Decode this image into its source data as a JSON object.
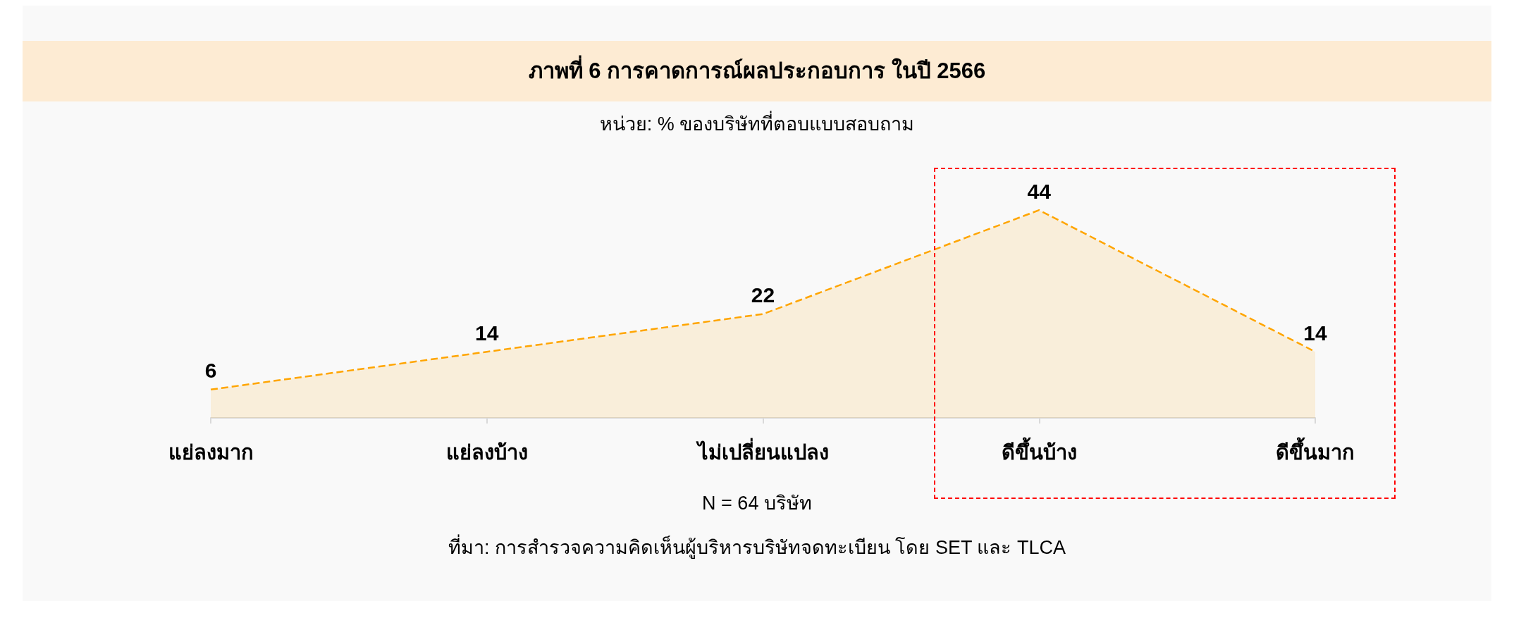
{
  "chart_data": {
    "type": "area",
    "title": "ภาพที่ 6 การคาดการณ์ผลประกอบการ ในปี 2566",
    "subtitle": "หน่วย: % ของบริษัทที่ตอบแบบสอบถาม",
    "categories": [
      "แย่ลงมาก",
      "แย่ลงบ้าง",
      "ไม่เปลี่ยนแปลง",
      "ดีขึ้นบ้าง",
      "ดีขึ้นมาก"
    ],
    "series": [
      {
        "color": "#ffa500",
        "values": [
          6,
          14,
          22,
          44,
          14
        ]
      }
    ],
    "line_style": "dashed",
    "data_labels": true,
    "annotations": [
      "N = 64 บริษัท",
      "ที่มา: การสำรวจความคิดเห็นผู้บริหารบริษัทจดทะเบียน โดย SET และ TLCA"
    ]
  }
}
